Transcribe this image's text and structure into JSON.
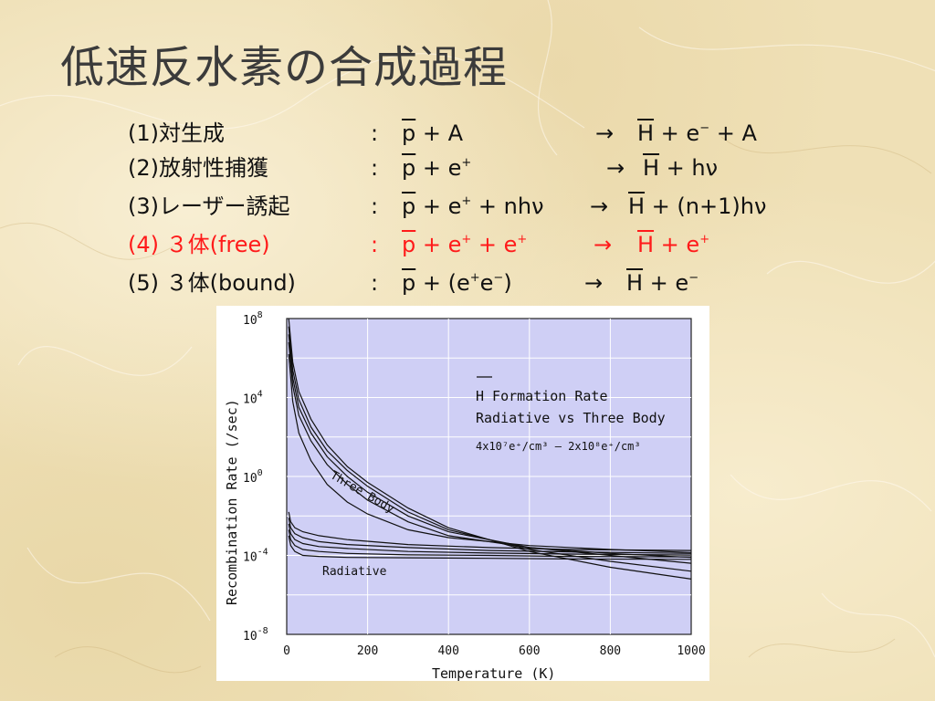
{
  "slide": {
    "title": "低速反水素の合成過程",
    "colors": {
      "text": "#111111",
      "highlight": "#ff1a1a",
      "plot_bg": "#cfcff5"
    }
  },
  "processes": [
    {
      "label": "(1)対生成",
      "lhs": "p + A",
      "rhs": "H + e⁻ + A",
      "highlight": false
    },
    {
      "label": "(2)放射性捕獲",
      "lhs": "p + e⁺",
      "rhs": "H + hν",
      "highlight": false
    },
    {
      "label": "(3)レーザー誘起",
      "lhs": "p + e⁺ + nhν",
      "rhs": "H + (n+1)hν",
      "highlight": false
    },
    {
      "label": "(4) ３体(free)",
      "lhs": "p + e⁺ + e⁺",
      "rhs": "H + e⁺",
      "highlight": true
    },
    {
      "label": "(5) ３体(bound)",
      "lhs": "p + (e⁺e⁻)",
      "rhs": "H + e⁻",
      "highlight": false
    }
  ],
  "chart_data": {
    "type": "line",
    "title": "H Formation Rate",
    "subtitle": "Radiative vs Three Body",
    "annotation": "4x10⁷e⁺/cm³ – 2x10⁸e⁺/cm³",
    "xlabel": "Temperature (K)",
    "ylabel": "Recombination Rate (/sec)",
    "x_ticks": [
      "0",
      "200",
      "400",
      "600",
      "800",
      "1000"
    ],
    "y_tick_exponents": [
      "8",
      "4",
      "0",
      "-4",
      "-8"
    ],
    "xlim": [
      0,
      1000
    ],
    "ylim_log10": [
      -8,
      8
    ],
    "grid": true,
    "y_scale": "log",
    "labels": {
      "three_body": "Three Body",
      "radiative": "Radiative"
    },
    "series": [
      {
        "group": "three_body",
        "x": [
          5,
          15,
          30,
          60,
          100,
          150,
          200,
          300,
          400,
          600,
          800,
          1000
        ],
        "y_log10": [
          8.0,
          5.8,
          4.3,
          2.9,
          1.6,
          0.5,
          -0.3,
          -1.6,
          -2.6,
          -3.8,
          -4.6,
          -5.2
        ]
      },
      {
        "group": "three_body",
        "x": [
          5,
          15,
          30,
          60,
          100,
          150,
          200,
          300,
          400,
          600,
          800,
          1000
        ],
        "y_log10": [
          7.6,
          5.4,
          3.9,
          2.5,
          1.3,
          0.3,
          -0.5,
          -1.8,
          -2.7,
          -3.7,
          -4.3,
          -4.8
        ]
      },
      {
        "group": "three_body",
        "x": [
          5,
          15,
          30,
          60,
          100,
          150,
          200,
          300,
          400,
          600,
          800,
          1000
        ],
        "y_log10": [
          7.2,
          5.0,
          3.5,
          2.2,
          1.0,
          0.0,
          -0.8,
          -2.0,
          -2.8,
          -3.6,
          -4.0,
          -4.4
        ]
      },
      {
        "group": "three_body",
        "x": [
          5,
          15,
          30,
          60,
          100,
          150,
          200,
          300,
          400,
          600,
          800,
          1000
        ],
        "y_log10": [
          6.8,
          4.6,
          3.1,
          1.8,
          0.6,
          -0.4,
          -1.2,
          -2.3,
          -3.0,
          -3.6,
          -3.9,
          -4.1
        ]
      },
      {
        "group": "three_body",
        "x": [
          5,
          15,
          30,
          60,
          100,
          150,
          200,
          300,
          400,
          600,
          800,
          1000
        ],
        "y_log10": [
          6.2,
          3.8,
          2.2,
          0.8,
          -0.4,
          -1.3,
          -1.9,
          -2.7,
          -3.1,
          -3.5,
          -3.7,
          -3.85
        ]
      },
      {
        "group": "radiative",
        "x": [
          5,
          10,
          20,
          40,
          80,
          150,
          300,
          500,
          700,
          1000
        ],
        "y_log10": [
          -1.8,
          -2.3,
          -2.6,
          -2.8,
          -3.0,
          -3.2,
          -3.45,
          -3.6,
          -3.7,
          -3.75
        ]
      },
      {
        "group": "radiative",
        "x": [
          5,
          10,
          20,
          40,
          80,
          150,
          300,
          500,
          700,
          1000
        ],
        "y_log10": [
          -2.1,
          -2.6,
          -2.9,
          -3.1,
          -3.3,
          -3.45,
          -3.6,
          -3.75,
          -3.82,
          -3.9
        ]
      },
      {
        "group": "radiative",
        "x": [
          5,
          10,
          20,
          40,
          80,
          150,
          300,
          500,
          700,
          1000
        ],
        "y_log10": [
          -2.4,
          -2.9,
          -3.2,
          -3.4,
          -3.55,
          -3.65,
          -3.8,
          -3.88,
          -3.93,
          -3.98
        ]
      },
      {
        "group": "radiative",
        "x": [
          5,
          10,
          20,
          40,
          80,
          150,
          300,
          500,
          700,
          1000
        ],
        "y_log10": [
          -2.7,
          -3.2,
          -3.5,
          -3.7,
          -3.8,
          -3.9,
          -3.97,
          -4.0,
          -4.05,
          -4.08
        ]
      },
      {
        "group": "radiative",
        "x": [
          5,
          10,
          20,
          40,
          80,
          150,
          300,
          500,
          700,
          1000
        ],
        "y_log10": [
          -3.0,
          -3.5,
          -3.8,
          -4.0,
          -4.05,
          -4.1,
          -4.12,
          -4.15,
          -4.18,
          -4.2
        ]
      }
    ]
  }
}
